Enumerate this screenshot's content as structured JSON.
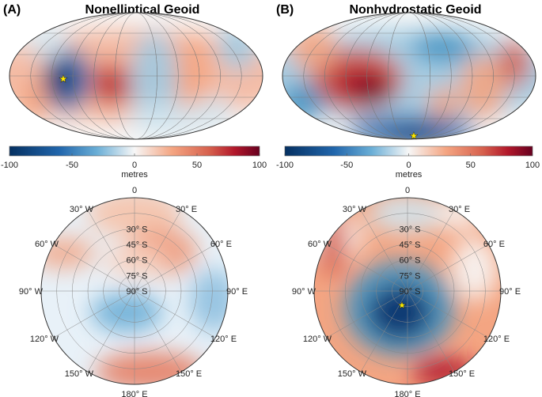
{
  "colorscale": {
    "min": -100,
    "max": 100,
    "low_color": "#053061",
    "mid_color": "#f7f7f7",
    "high_color": "#67001f"
  },
  "panels": [
    {
      "letter": "(A)",
      "title": "Nonelliptical Geoid",
      "colorbar": {
        "ticks": [
          "-100",
          "-50",
          "0",
          "50",
          "100"
        ],
        "unit": "metres"
      },
      "polar": {
        "lon_labels": [
          "0",
          "30° E",
          "60° E",
          "90° E",
          "120° E",
          "150° E",
          "180° E",
          "150° W",
          "120° W",
          "90° W",
          "60° W",
          "30° W"
        ],
        "lat_labels": [
          "30° S",
          "45° S",
          "60° S",
          "75° S",
          "90° S"
        ]
      },
      "star": true
    },
    {
      "letter": "(B)",
      "title": "Nonhydrostatic Geoid",
      "colorbar": {
        "ticks": [
          "-100",
          "-50",
          "0",
          "50",
          "100"
        ],
        "unit": "metres"
      },
      "polar": {
        "lon_labels": [
          "0",
          "30° E",
          "60° E",
          "90° E",
          "120° E",
          "150° E",
          "180° E",
          "150° W",
          "120° W",
          "90° W",
          "60° W",
          "30° W"
        ],
        "lat_labels": [
          "30° S",
          "45° S",
          "60° S",
          "75° S",
          "90° S"
        ]
      },
      "star": true
    }
  ]
}
